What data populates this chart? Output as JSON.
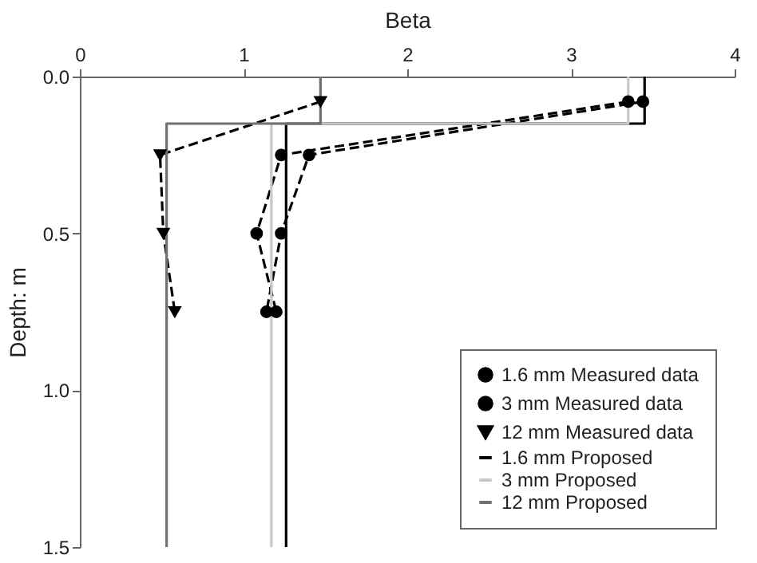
{
  "chart_data": {
    "type": "line",
    "xlabel": "Beta",
    "ylabel": "Depth: m",
    "xlim": [
      0,
      4
    ],
    "xticks": [
      0,
      1,
      2,
      3,
      4
    ],
    "ylim": [
      1.5,
      0
    ],
    "yticks": [
      {
        "value": 0,
        "label": "0.0"
      },
      {
        "value": 0.5,
        "label": "0.5"
      },
      {
        "value": 1,
        "label": "1.0"
      },
      {
        "value": 1.5,
        "label": "1.5"
      }
    ],
    "grid": false,
    "legend": "bottom right",
    "series": [
      {
        "name": "1.6 mm Measured data",
        "type": "line",
        "color": "#000000",
        "marker": "circle",
        "line_style": "dashed",
        "x": [
          3.44,
          1.4,
          1.23,
          1.14
        ],
        "values": [
          0.08,
          0.25,
          0.5,
          0.75
        ]
      },
      {
        "name": "3 mm Measured data",
        "type": "line",
        "color": "#000000",
        "marker": "circle",
        "line_style": "dashed",
        "x": [
          3.35,
          1.23,
          1.08,
          1.2
        ],
        "values": [
          0.08,
          0.25,
          0.5,
          0.75
        ]
      },
      {
        "name": "12 mm Measured data",
        "type": "line",
        "color": "#000000",
        "marker": "triangle",
        "line_style": "dashed",
        "x": [
          1.47,
          0.49,
          0.51,
          0.58
        ],
        "values": [
          0.08,
          0.25,
          0.5,
          0.75
        ]
      },
      {
        "name": "1.6 mm Proposed",
        "type": "line",
        "color": "#000000",
        "marker": "none",
        "line_style": "solid",
        "x": [
          3.45,
          3.45,
          1.26,
          1.26
        ],
        "values": [
          0,
          0.15,
          0.15,
          1.5
        ]
      },
      {
        "name": "3 mm Proposed",
        "type": "line",
        "color": "#c8c8c8",
        "marker": "none",
        "line_style": "solid",
        "x": [
          3.35,
          3.35,
          1.17,
          1.17
        ],
        "values": [
          0,
          0.15,
          0.15,
          1.5
        ]
      },
      {
        "name": "12 mm Proposed",
        "type": "line",
        "color": "#707070",
        "marker": "none",
        "line_style": "solid",
        "x": [
          1.47,
          1.47,
          0.53,
          0.53
        ],
        "values": [
          0,
          0.15,
          0.15,
          1.5
        ]
      }
    ]
  }
}
